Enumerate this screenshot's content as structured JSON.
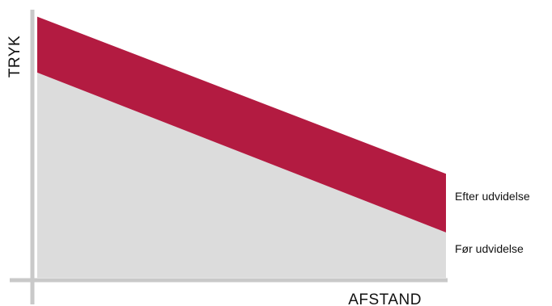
{
  "chart_data": {
    "type": "area",
    "xlabel": "AFSTAND",
    "ylabel": "TRYK",
    "x": [
      0,
      1
    ],
    "xlim": [
      0,
      1
    ],
    "ylim": [
      0,
      1
    ],
    "grid": false,
    "legend": "right-inline",
    "series": [
      {
        "name": "Før udvidelse",
        "values": [
          0.77,
          0.17
        ],
        "color": "#dcdcdc"
      },
      {
        "name": "Efter udvidelse",
        "values": [
          0.98,
          0.39
        ],
        "color": "#b31b41"
      }
    ],
    "axis_color": "#c9c9c9"
  }
}
